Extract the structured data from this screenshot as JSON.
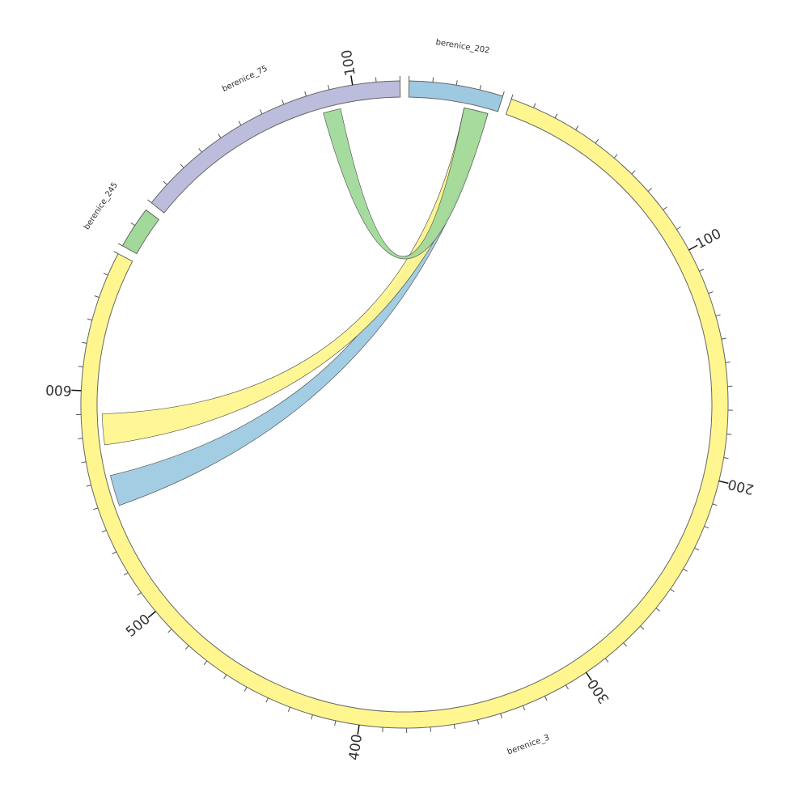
{
  "chart_data": {
    "type": "chord",
    "segments": [
      {
        "name": "berenice_3",
        "length": 660,
        "color": "#fff68f",
        "tick_labels": [
          "100",
          "200",
          "300",
          "400",
          "500",
          "600"
        ]
      },
      {
        "name": "berenice_245",
        "length": 18,
        "color": "#a1d99b",
        "tick_labels": []
      },
      {
        "name": "berenice_75",
        "length": 120,
        "color": "#bcbddc",
        "tick_labels": [
          "100"
        ]
      },
      {
        "name": "berenice_202",
        "length": 40,
        "color": "#9ecae1",
        "tick_labels": []
      }
    ],
    "links": [
      {
        "source": "berenice_3",
        "source_range": [
          548,
          562
        ],
        "target": "berenice_202",
        "target_range": [
          25,
          36
        ],
        "color": "#9ecae1"
      },
      {
        "source": "berenice_3",
        "source_range": [
          576,
          590
        ],
        "target": "berenice_202",
        "target_range": [
          25,
          36
        ],
        "color": "#fff68f"
      },
      {
        "source": "berenice_75",
        "source_range": [
          85,
          93
        ],
        "target": "berenice_202",
        "target_range": [
          25,
          36
        ],
        "color": "#a1d99b"
      }
    ],
    "tick_interval": 10,
    "major_tick_interval": 100
  }
}
